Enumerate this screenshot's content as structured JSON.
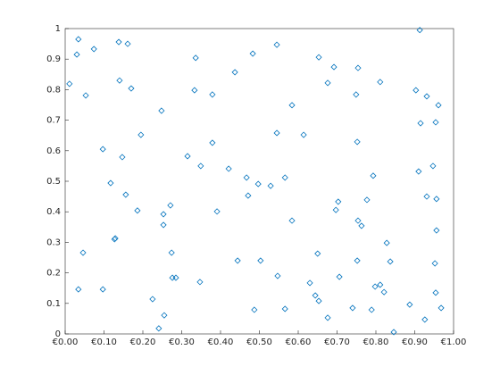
{
  "chart_data": {
    "type": "scatter",
    "color": "#0072bd",
    "marker": "diamond",
    "x": [
      0.011,
      0.034,
      0.03,
      0.074,
      0.053,
      0.046,
      0.034,
      0.097,
      0.097,
      0.138,
      0.161,
      0.14,
      0.17,
      0.117,
      0.147,
      0.156,
      0.129,
      0.127,
      0.186,
      0.195,
      0.225,
      0.248,
      0.253,
      0.253,
      0.271,
      0.274,
      0.276,
      0.285,
      0.255,
      0.241,
      0.315,
      0.336,
      0.333,
      0.349,
      0.347,
      0.379,
      0.379,
      0.391,
      0.421,
      0.437,
      0.444,
      0.467,
      0.471,
      0.483,
      0.497,
      0.503,
      0.487,
      0.529,
      0.545,
      0.545,
      0.547,
      0.566,
      0.584,
      0.584,
      0.566,
      0.614,
      0.63,
      0.644,
      0.653,
      0.65,
      0.653,
      0.676,
      0.692,
      0.676,
      0.697,
      0.703,
      0.706,
      0.74,
      0.749,
      0.754,
      0.752,
      0.754,
      0.763,
      0.752,
      0.777,
      0.793,
      0.789,
      0.798,
      0.811,
      0.811,
      0.821,
      0.828,
      0.837,
      0.846,
      0.887,
      0.903,
      0.913,
      0.915,
      0.91,
      0.931,
      0.931,
      0.926,
      0.947,
      0.954,
      0.961,
      0.956,
      0.956,
      0.952,
      0.954,
      0.968
    ],
    "y": [
      0.819,
      0.965,
      0.915,
      0.933,
      0.781,
      0.266,
      0.146,
      0.605,
      0.146,
      0.956,
      0.95,
      0.83,
      0.804,
      0.494,
      0.579,
      0.456,
      0.313,
      0.31,
      0.404,
      0.652,
      0.114,
      0.731,
      0.392,
      0.357,
      0.421,
      0.266,
      0.184,
      0.184,
      0.061,
      0.018,
      0.582,
      0.904,
      0.798,
      0.55,
      0.17,
      0.784,
      0.626,
      0.401,
      0.541,
      0.857,
      0.24,
      0.512,
      0.453,
      0.918,
      0.491,
      0.24,
      0.079,
      0.485,
      0.658,
      0.947,
      0.19,
      0.512,
      0.749,
      0.371,
      0.082,
      0.652,
      0.167,
      0.126,
      0.108,
      0.263,
      0.906,
      0.822,
      0.874,
      0.053,
      0.406,
      0.433,
      0.187,
      0.085,
      0.784,
      0.871,
      0.629,
      0.371,
      0.354,
      0.24,
      0.439,
      0.518,
      0.079,
      0.155,
      0.825,
      0.161,
      0.137,
      0.298,
      0.237,
      0.006,
      0.096,
      0.798,
      0.995,
      0.69,
      0.532,
      0.778,
      0.45,
      0.047,
      0.55,
      0.693,
      0.749,
      0.442,
      0.339,
      0.231,
      0.135,
      0.085
    ],
    "xlim": [
      0,
      1
    ],
    "ylim": [
      0,
      1
    ],
    "xticks": [
      {
        "value": 0,
        "label": "€0.00"
      },
      {
        "value": 0.1,
        "label": "€0.10"
      },
      {
        "value": 0.2,
        "label": "€0.20"
      },
      {
        "value": 0.3,
        "label": "€0.30"
      },
      {
        "value": 0.4,
        "label": "€0.40"
      },
      {
        "value": 0.5,
        "label": "€0.50"
      },
      {
        "value": 0.6,
        "label": "€0.60"
      },
      {
        "value": 0.7,
        "label": "€0.70"
      },
      {
        "value": 0.8,
        "label": "€0.80"
      },
      {
        "value": 0.9,
        "label": "€0.90"
      },
      {
        "value": 1,
        "label": "€1.00"
      }
    ],
    "yticks": [
      0,
      0.1,
      0.2,
      0.3,
      0.4,
      0.5,
      0.6,
      0.7,
      0.8,
      0.9,
      1
    ],
    "grid": false
  }
}
